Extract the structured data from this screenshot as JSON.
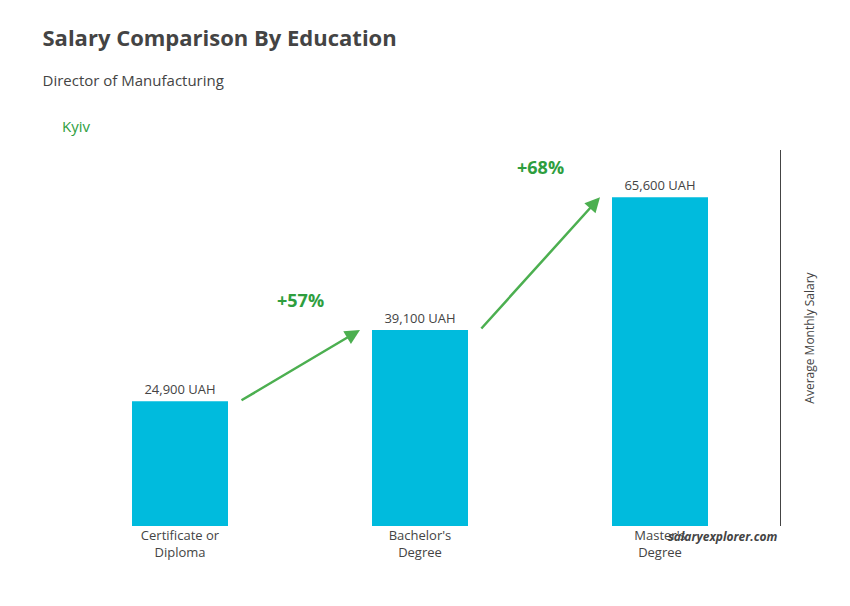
{
  "chart_data": {
    "type": "bar",
    "title": "Salary Comparison By Education",
    "subtitle": "Director of Manufacturing",
    "ylabel": "Average Monthly Salary",
    "categories": [
      "Certificate or\nDiploma",
      "Bachelor's\nDegree",
      "Master's\nDegree"
    ],
    "values": [
      24900,
      39100,
      65600
    ],
    "value_labels": [
      "24,900 UAH",
      "39,100 UAH",
      "65,600 UAH"
    ],
    "data_labels": true,
    "annotations": [
      "+57%",
      "+68%",
      "Kyiv",
      "salaryexplorer.com"
    ],
    "color": "#00BBDD",
    "ylim": [
      0,
      75000
    ],
    "tick_labels": "x",
    "grid": false
  }
}
